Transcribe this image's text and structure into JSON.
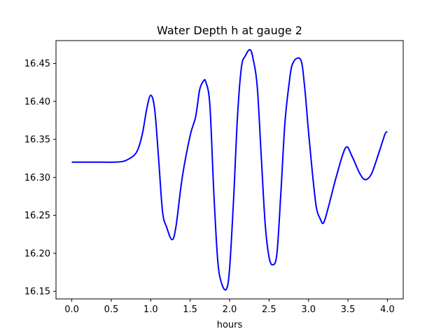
{
  "chart_data": {
    "type": "line",
    "title": "Water Depth h at gauge 2",
    "xlabel": "hours",
    "ylabel": "",
    "xlim": [
      -0.2,
      4.2
    ],
    "ylim": [
      16.14,
      16.48
    ],
    "xticks": [
      0.0,
      0.5,
      1.0,
      1.5,
      2.0,
      2.5,
      3.0,
      3.5,
      4.0
    ],
    "xtick_labels": [
      "0.0",
      "0.5",
      "1.0",
      "1.5",
      "2.0",
      "2.5",
      "3.0",
      "3.5",
      "4.0"
    ],
    "yticks": [
      16.15,
      16.2,
      16.25,
      16.3,
      16.35,
      16.4,
      16.45
    ],
    "ytick_labels": [
      "16.15",
      "16.20",
      "16.25",
      "16.30",
      "16.35",
      "16.40",
      "16.45"
    ],
    "grid": false,
    "legend": "none",
    "series": [
      {
        "color": "#0000ff",
        "x": [
          0.0,
          0.2,
          0.4,
          0.55,
          0.65,
          0.72,
          0.8,
          0.85,
          0.9,
          0.95,
          1.0,
          1.05,
          1.1,
          1.15,
          1.2,
          1.27,
          1.32,
          1.4,
          1.5,
          1.57,
          1.62,
          1.67,
          1.7,
          1.75,
          1.8,
          1.85,
          1.9,
          1.96,
          2.0,
          2.05,
          2.1,
          2.15,
          2.2,
          2.26,
          2.3,
          2.35,
          2.4,
          2.45,
          2.5,
          2.55,
          2.6,
          2.65,
          2.7,
          2.75,
          2.8,
          2.9,
          2.95,
          3.0,
          3.05,
          3.1,
          3.15,
          3.19,
          3.25,
          3.35,
          3.47,
          3.55,
          3.65,
          3.72,
          3.8,
          3.9,
          3.97,
          4.0
        ],
        "y": [
          16.32,
          16.32,
          16.32,
          16.32,
          16.321,
          16.324,
          16.33,
          16.34,
          16.36,
          16.39,
          16.408,
          16.39,
          16.325,
          16.255,
          16.235,
          16.218,
          16.235,
          16.3,
          16.355,
          16.38,
          16.415,
          16.427,
          16.425,
          16.395,
          16.28,
          16.19,
          16.16,
          16.153,
          16.18,
          16.27,
          16.38,
          16.445,
          16.46,
          16.468,
          16.455,
          16.42,
          16.33,
          16.24,
          16.195,
          16.185,
          16.2,
          16.28,
          16.37,
          16.42,
          16.45,
          16.455,
          16.42,
          16.36,
          16.305,
          16.26,
          16.245,
          16.24,
          16.26,
          16.3,
          16.339,
          16.328,
          16.305,
          16.297,
          16.305,
          16.335,
          16.357,
          16.36
        ]
      }
    ]
  }
}
